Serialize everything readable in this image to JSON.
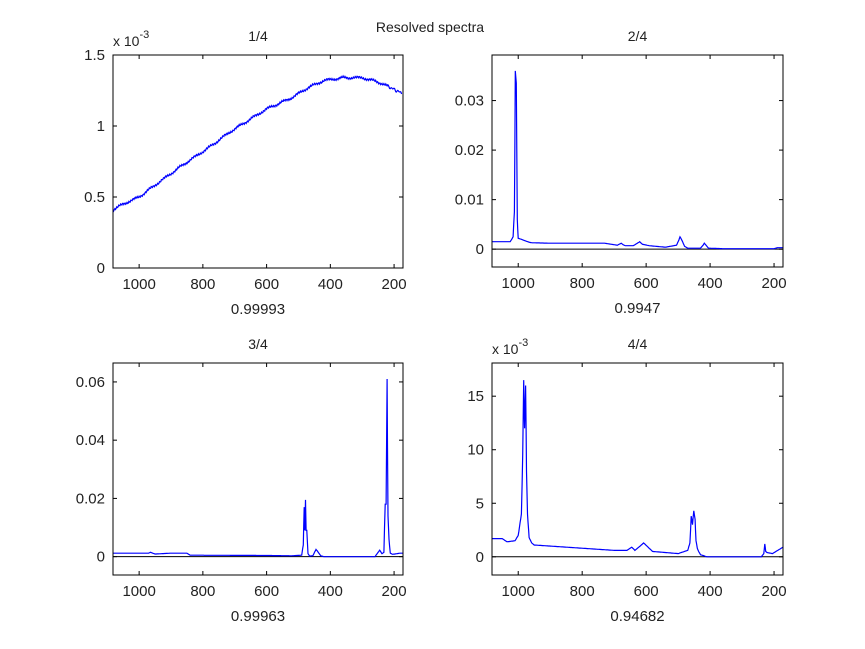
{
  "figure_title": "Resolved spectra",
  "colors": {
    "line": "#0000ff",
    "axes": "#000000",
    "zero_line": "#000000"
  },
  "chart_data": [
    {
      "type": "line",
      "title": "1/4",
      "xlabel": "0.99993",
      "ylabel": "",
      "y_multiplier": "x 10",
      "y_multiplier_exp": "-3",
      "xlim": [
        1082,
        172
      ],
      "ylim": [
        0,
        1.5
      ],
      "xticks": [
        1000,
        800,
        600,
        400,
        200
      ],
      "xtick_labels": [
        "1000",
        "800",
        "600",
        "400",
        "200"
      ],
      "yticks": [
        0,
        0.5,
        1,
        1.5
      ],
      "ytick_labels": [
        "0",
        "0.5",
        "1",
        "1.5"
      ],
      "zero_line": false,
      "noise": 0.012,
      "x": [
        1082,
        1050,
        1000,
        940,
        860,
        780,
        720,
        650,
        600,
        520,
        470,
        420,
        360,
        300,
        250,
        220,
        175
      ],
      "y": [
        0.41,
        0.45,
        0.5,
        0.6,
        0.73,
        0.85,
        0.95,
        1.05,
        1.12,
        1.2,
        1.27,
        1.32,
        1.34,
        1.34,
        1.31,
        1.28,
        1.23
      ]
    },
    {
      "type": "line",
      "title": "2/4",
      "xlabel": "0.9947",
      "ylabel": "",
      "xlim": [
        1082,
        172
      ],
      "ylim": [
        -0.0036,
        0.0392
      ],
      "xticks": [
        1000,
        800,
        600,
        400,
        200
      ],
      "xtick_labels": [
        "1000",
        "800",
        "600",
        "400",
        "200"
      ],
      "yticks": [
        0,
        0.01,
        0.02,
        0.03
      ],
      "ytick_labels": [
        "0",
        "0.01",
        "0.02",
        "0.03"
      ],
      "zero_line": true,
      "noise": 0,
      "x": [
        1082,
        1025,
        1016,
        1012,
        1009,
        1008,
        1006,
        1003,
        1000,
        990,
        975,
        960,
        900,
        730,
        690,
        678,
        672,
        665,
        640,
        625,
        620,
        612,
        590,
        540,
        505,
        498,
        494,
        488,
        480,
        470,
        430,
        422,
        418,
        414,
        405,
        360,
        300,
        200,
        190,
        172
      ],
      "y": [
        0.0015,
        0.0015,
        0.0025,
        0.0075,
        0.036,
        0.035,
        0.0335,
        0.006,
        0.0022,
        0.002,
        0.0016,
        0.0013,
        0.0012,
        0.0012,
        0.0008,
        0.0012,
        0.0009,
        0.0007,
        0.0007,
        0.0013,
        0.0015,
        0.001,
        0.0007,
        0.0004,
        0.0008,
        0.0018,
        0.0025,
        0.0018,
        0.0006,
        0.0002,
        0.0002,
        0.0008,
        0.0012,
        0.0009,
        0.0002,
        0.0001,
        0.0001,
        0.0001,
        0.0003,
        0.0003
      ]
    },
    {
      "type": "line",
      "title": "3/4",
      "xlabel": "0.99963",
      "ylabel": "",
      "xlim": [
        1082,
        172
      ],
      "ylim": [
        -0.0063,
        0.0665
      ],
      "xticks": [
        1000,
        800,
        600,
        400,
        200
      ],
      "xtick_labels": [
        "1000",
        "800",
        "600",
        "400",
        "200"
      ],
      "yticks": [
        0,
        0.02,
        0.04,
        0.06
      ],
      "ytick_labels": [
        "0",
        "0.02",
        "0.04",
        "0.06"
      ],
      "zero_line": true,
      "noise": 0,
      "x": [
        1082,
        970,
        965,
        950,
        900,
        850,
        840,
        600,
        520,
        490,
        485,
        482,
        480,
        478,
        476,
        474,
        470,
        465,
        455,
        445,
        440,
        430,
        420,
        400,
        260,
        250,
        245,
        238,
        232,
        228,
        225,
        222,
        219,
        216,
        212,
        205,
        180,
        172
      ],
      "y": [
        0.0012,
        0.0012,
        0.0015,
        0.0009,
        0.0012,
        0.0012,
        0.0005,
        0.0004,
        0.0003,
        0.0005,
        0.004,
        0.017,
        0.009,
        0.0195,
        0.009,
        0.009,
        0.001,
        0.0002,
        0.0003,
        0.0025,
        0.0018,
        0.0003,
        0.0,
        0.0,
        0.0,
        0.0015,
        0.0022,
        0.001,
        0.0015,
        0.018,
        0.018,
        0.061,
        0.014,
        0.006,
        0.0012,
        0.0008,
        0.0012,
        0.0012
      ]
    },
    {
      "type": "line",
      "title": "4/4",
      "xlabel": "0.94682",
      "ylabel": "",
      "y_multiplier": "x 10",
      "y_multiplier_exp": "-3",
      "xlim": [
        1082,
        172
      ],
      "ylim": [
        -1.7,
        18.1
      ],
      "xticks": [
        1000,
        800,
        600,
        400,
        200
      ],
      "xtick_labels": [
        "1000",
        "800",
        "600",
        "400",
        "200"
      ],
      "yticks": [
        0,
        5,
        10,
        15
      ],
      "ytick_labels": [
        "0",
        "5",
        "10",
        "15"
      ],
      "zero_line": true,
      "noise": 0,
      "x": [
        1082,
        1050,
        1035,
        1010,
        1000,
        990,
        986,
        983,
        980,
        977,
        974,
        971,
        966,
        958,
        950,
        900,
        800,
        700,
        660,
        645,
        635,
        615,
        608,
        580,
        500,
        470,
        463,
        459,
        455,
        451,
        447,
        444,
        440,
        436,
        430,
        410,
        240,
        232,
        229,
        226,
        222,
        205,
        172
      ],
      "y": [
        1.7,
        1.7,
        1.4,
        1.5,
        2.0,
        4.0,
        9.5,
        16.5,
        12.0,
        16.0,
        8.0,
        4.0,
        1.8,
        1.3,
        1.1,
        1.0,
        0.8,
        0.6,
        0.6,
        0.9,
        0.6,
        1.1,
        1.3,
        0.5,
        0.3,
        0.6,
        1.3,
        3.8,
        3.0,
        4.3,
        3.5,
        1.5,
        0.8,
        0.5,
        0.2,
        0.0,
        0.0,
        0.3,
        1.2,
        0.5,
        0.4,
        0.3,
        0.9
      ]
    }
  ]
}
